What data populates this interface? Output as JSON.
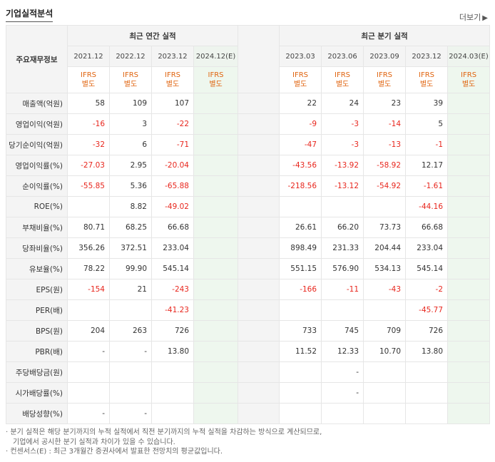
{
  "header": {
    "title": "기업실적분석",
    "more_label": "더보기",
    "more_arrow": "▶"
  },
  "table": {
    "label_header": "주요재무정보",
    "annual_header": "최근 연간 실적",
    "quarter_header": "최근 분기 실적",
    "annual_periods": [
      "2021.12",
      "2022.12",
      "2023.12",
      "2024.12(E)"
    ],
    "quarter_periods": [
      "2023.03",
      "2023.06",
      "2023.09",
      "2023.12",
      "2024.03(E)"
    ],
    "basis_line1": "IFRS",
    "basis_line2": "별도",
    "rows": [
      {
        "label": "매출액(억원)",
        "annual": [
          "58",
          "109",
          "107",
          ""
        ],
        "quarter": [
          "22",
          "24",
          "23",
          "39",
          ""
        ]
      },
      {
        "label": "영업이익(억원)",
        "annual": [
          "-16",
          "3",
          "-22",
          ""
        ],
        "quarter": [
          "-9",
          "-3",
          "-14",
          "5",
          ""
        ]
      },
      {
        "label": "당기순이익(억원)",
        "annual": [
          "-32",
          "6",
          "-71",
          ""
        ],
        "quarter": [
          "-47",
          "-3",
          "-13",
          "-1",
          ""
        ]
      },
      {
        "label": "영업이익률(%)",
        "annual": [
          "-27.03",
          "2.95",
          "-20.04",
          ""
        ],
        "quarter": [
          "-43.56",
          "-13.92",
          "-58.92",
          "12.17",
          ""
        ]
      },
      {
        "label": "순이익률(%)",
        "annual": [
          "-55.85",
          "5.36",
          "-65.88",
          ""
        ],
        "quarter": [
          "-218.56",
          "-13.12",
          "-54.92",
          "-1.61",
          ""
        ]
      },
      {
        "label": "ROE(%)",
        "annual": [
          "",
          "8.82",
          "-49.02",
          ""
        ],
        "quarter": [
          "",
          "",
          "",
          "-44.16",
          ""
        ]
      },
      {
        "label": "부채비율(%)",
        "annual": [
          "80.71",
          "68.25",
          "66.68",
          ""
        ],
        "quarter": [
          "26.61",
          "66.20",
          "73.73",
          "66.68",
          ""
        ]
      },
      {
        "label": "당좌비율(%)",
        "annual": [
          "356.26",
          "372.51",
          "233.04",
          ""
        ],
        "quarter": [
          "898.49",
          "231.33",
          "204.44",
          "233.04",
          ""
        ]
      },
      {
        "label": "유보율(%)",
        "annual": [
          "78.22",
          "99.90",
          "545.14",
          ""
        ],
        "quarter": [
          "551.15",
          "576.90",
          "534.13",
          "545.14",
          ""
        ]
      },
      {
        "label": "EPS(원)",
        "annual": [
          "-154",
          "21",
          "-243",
          ""
        ],
        "quarter": [
          "-166",
          "-11",
          "-43",
          "-2",
          ""
        ]
      },
      {
        "label": "PER(배)",
        "annual": [
          "",
          "",
          "-41.23",
          ""
        ],
        "quarter": [
          "",
          "",
          "",
          "-45.77",
          ""
        ]
      },
      {
        "label": "BPS(원)",
        "annual": [
          "204",
          "263",
          "726",
          ""
        ],
        "quarter": [
          "733",
          "745",
          "709",
          "726",
          ""
        ]
      },
      {
        "label": "PBR(배)",
        "annual": [
          "-",
          "-",
          "13.80",
          ""
        ],
        "quarter": [
          "11.52",
          "12.33",
          "10.70",
          "13.80",
          ""
        ]
      },
      {
        "label": "주당배당금(원)",
        "annual": [
          "",
          "",
          "",
          ""
        ],
        "quarter": [
          "",
          "-",
          "",
          "",
          ""
        ]
      },
      {
        "label": "시가배당률(%)",
        "annual": [
          "",
          "",
          "",
          ""
        ],
        "quarter": [
          "",
          "-",
          "",
          "",
          ""
        ]
      },
      {
        "label": "배당성향(%)",
        "annual": [
          "-",
          "-",
          "",
          ""
        ],
        "quarter": [
          "",
          "",
          "",
          "",
          ""
        ]
      }
    ]
  },
  "footer": {
    "note1_line1": "분기 실적은 해당 분기까지의 누적 실적에서 직전 분기까지의 누적 실적을 차감하는 방식으로 계산되므로,",
    "note1_line2": "기업에서 공시한 분기 실적과 차이가 있을 수 있습니다.",
    "note2": "컨센서스(E) : 최근 3개월간 증권사에서 발표한 전망치의 평균값입니다.",
    "bullet": "·"
  },
  "colors": {
    "negative": "#e8261d",
    "basis": "#e0640f",
    "estimate_bg": "#eef7ee",
    "header_bg": "#f4f4f4"
  }
}
